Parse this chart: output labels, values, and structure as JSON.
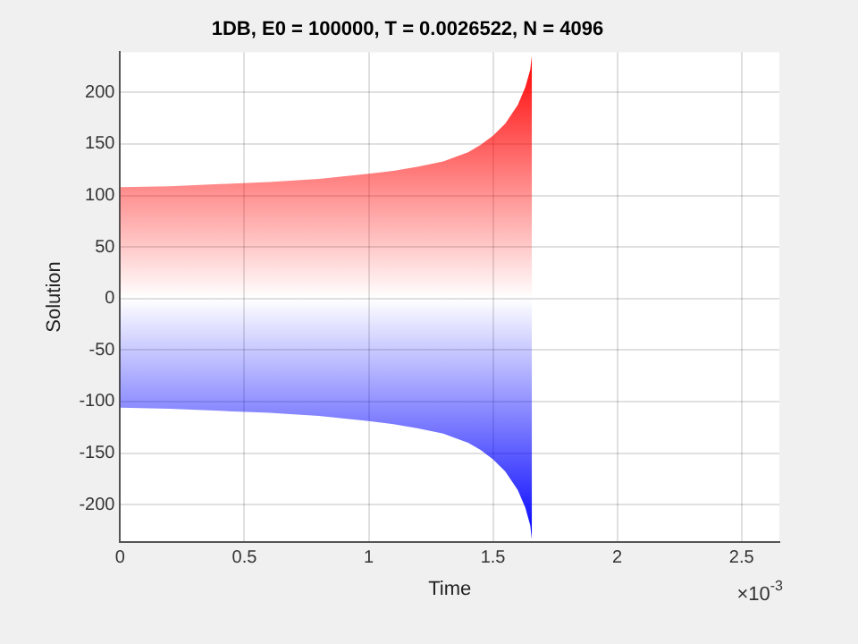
{
  "chart_data": {
    "type": "area",
    "title": "1DB, E0 = 100000, T = 0.0026522, N = 4096",
    "xlabel": "Time",
    "ylabel": "Solution",
    "x": [
      0,
      0.2,
      0.4,
      0.6,
      0.8,
      1,
      1.1,
      1.2,
      1.3,
      1.4,
      1.45,
      1.5,
      1.55,
      1.6,
      1.63,
      1.65,
      1.657
    ],
    "series": [
      {
        "color": "#ff0000",
        "values": [
          108,
          109,
          111,
          113,
          116,
          121,
          124,
          128,
          133,
          142,
          149,
          158,
          170,
          188,
          205,
          222,
          237
        ]
      },
      {
        "color": "#0000ff",
        "values": [
          -106,
          -107,
          -109,
          -111,
          -114,
          -119,
          -122,
          -126,
          -131,
          -140,
          -147,
          -156,
          -168,
          -186,
          -203,
          -220,
          -235
        ]
      }
    ],
    "xlim": [
      0,
      2.6522
    ],
    "ylim": [
      -236,
      239
    ],
    "xticks": [
      0,
      0.5,
      1,
      1.5,
      2,
      2.5
    ],
    "yticks": [
      -200,
      -150,
      -100,
      -50,
      0,
      50,
      100,
      150,
      200
    ],
    "annotations": [
      "×10$^{-3}$"
    ],
    "grid": true,
    "legend": false
  }
}
